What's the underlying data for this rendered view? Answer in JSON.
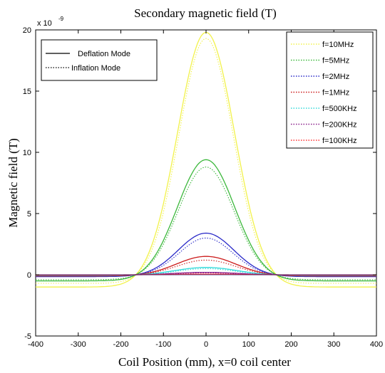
{
  "chart_data": {
    "type": "line",
    "title": "Secondary magnetic field (T)",
    "xlabel": "Coil Position (mm), x=0 coil center",
    "ylabel": "Magnetic field (T)",
    "y_scale_note": "x 10",
    "y_scale_exponent": "-9",
    "xlim": [
      -400,
      400
    ],
    "ylim": [
      -5,
      20
    ],
    "x_ticks": [
      -400,
      -300,
      -200,
      -100,
      0,
      100,
      200,
      300,
      400
    ],
    "y_ticks": [
      -5,
      0,
      5,
      10,
      15,
      20
    ],
    "grid": false,
    "mode_legend": {
      "placement": "top-left",
      "entries": [
        {
          "label": "Deflation Mode",
          "style": "solid",
          "color": "#000000"
        },
        {
          "label": "Inflation Mode",
          "style": "dotted",
          "color": "#000000"
        }
      ]
    },
    "freq_legend": {
      "placement": "top-right",
      "entries": [
        {
          "label": "f=10MHz",
          "color": "#f2f24a"
        },
        {
          "label": "f=5MHz",
          "color": "#3cb83c"
        },
        {
          "label": "f=2MHz",
          "color": "#2a2ac8"
        },
        {
          "label": "f=1MHz",
          "color": "#cc1a1a"
        },
        {
          "label": "f=500KHz",
          "color": "#33d9d9"
        },
        {
          "label": "f=200KHz",
          "color": "#8a1e8a"
        },
        {
          "label": "f=100KHz",
          "color": "#ff3030"
        }
      ]
    },
    "series": [
      {
        "name": "f=10MHz",
        "color": "#f2f24a",
        "peak": 19.8,
        "peak_inflation": 19.3,
        "tail": -1.0,
        "tail_inflation": -0.7
      },
      {
        "name": "f=5MHz",
        "color": "#3cb83c",
        "peak": 9.4,
        "peak_inflation": 8.8,
        "tail": -0.5,
        "tail_inflation": -0.4
      },
      {
        "name": "f=2MHz",
        "color": "#2a2ac8",
        "peak": 3.4,
        "peak_inflation": 3.0,
        "tail": -0.15,
        "tail_inflation": -0.1
      },
      {
        "name": "f=1MHz",
        "color": "#cc1a1a",
        "peak": 1.5,
        "peak_inflation": 1.2,
        "tail": -0.1,
        "tail_inflation": -0.07
      },
      {
        "name": "f=500KHz",
        "color": "#33d9d9",
        "peak": 0.6,
        "peak_inflation": 0.5,
        "tail": -0.05,
        "tail_inflation": -0.03
      },
      {
        "name": "f=200KHz",
        "color": "#8a1e8a",
        "peak": 0.2,
        "peak_inflation": 0.15,
        "tail": -0.02,
        "tail_inflation": -0.01
      },
      {
        "name": "f=100KHz",
        "color": "#ff3030",
        "peak": 0.05,
        "peak_inflation": 0.04,
        "tail": -0.005,
        "tail_inflation": -0.003
      }
    ],
    "zero_crossing_x": 165
  }
}
